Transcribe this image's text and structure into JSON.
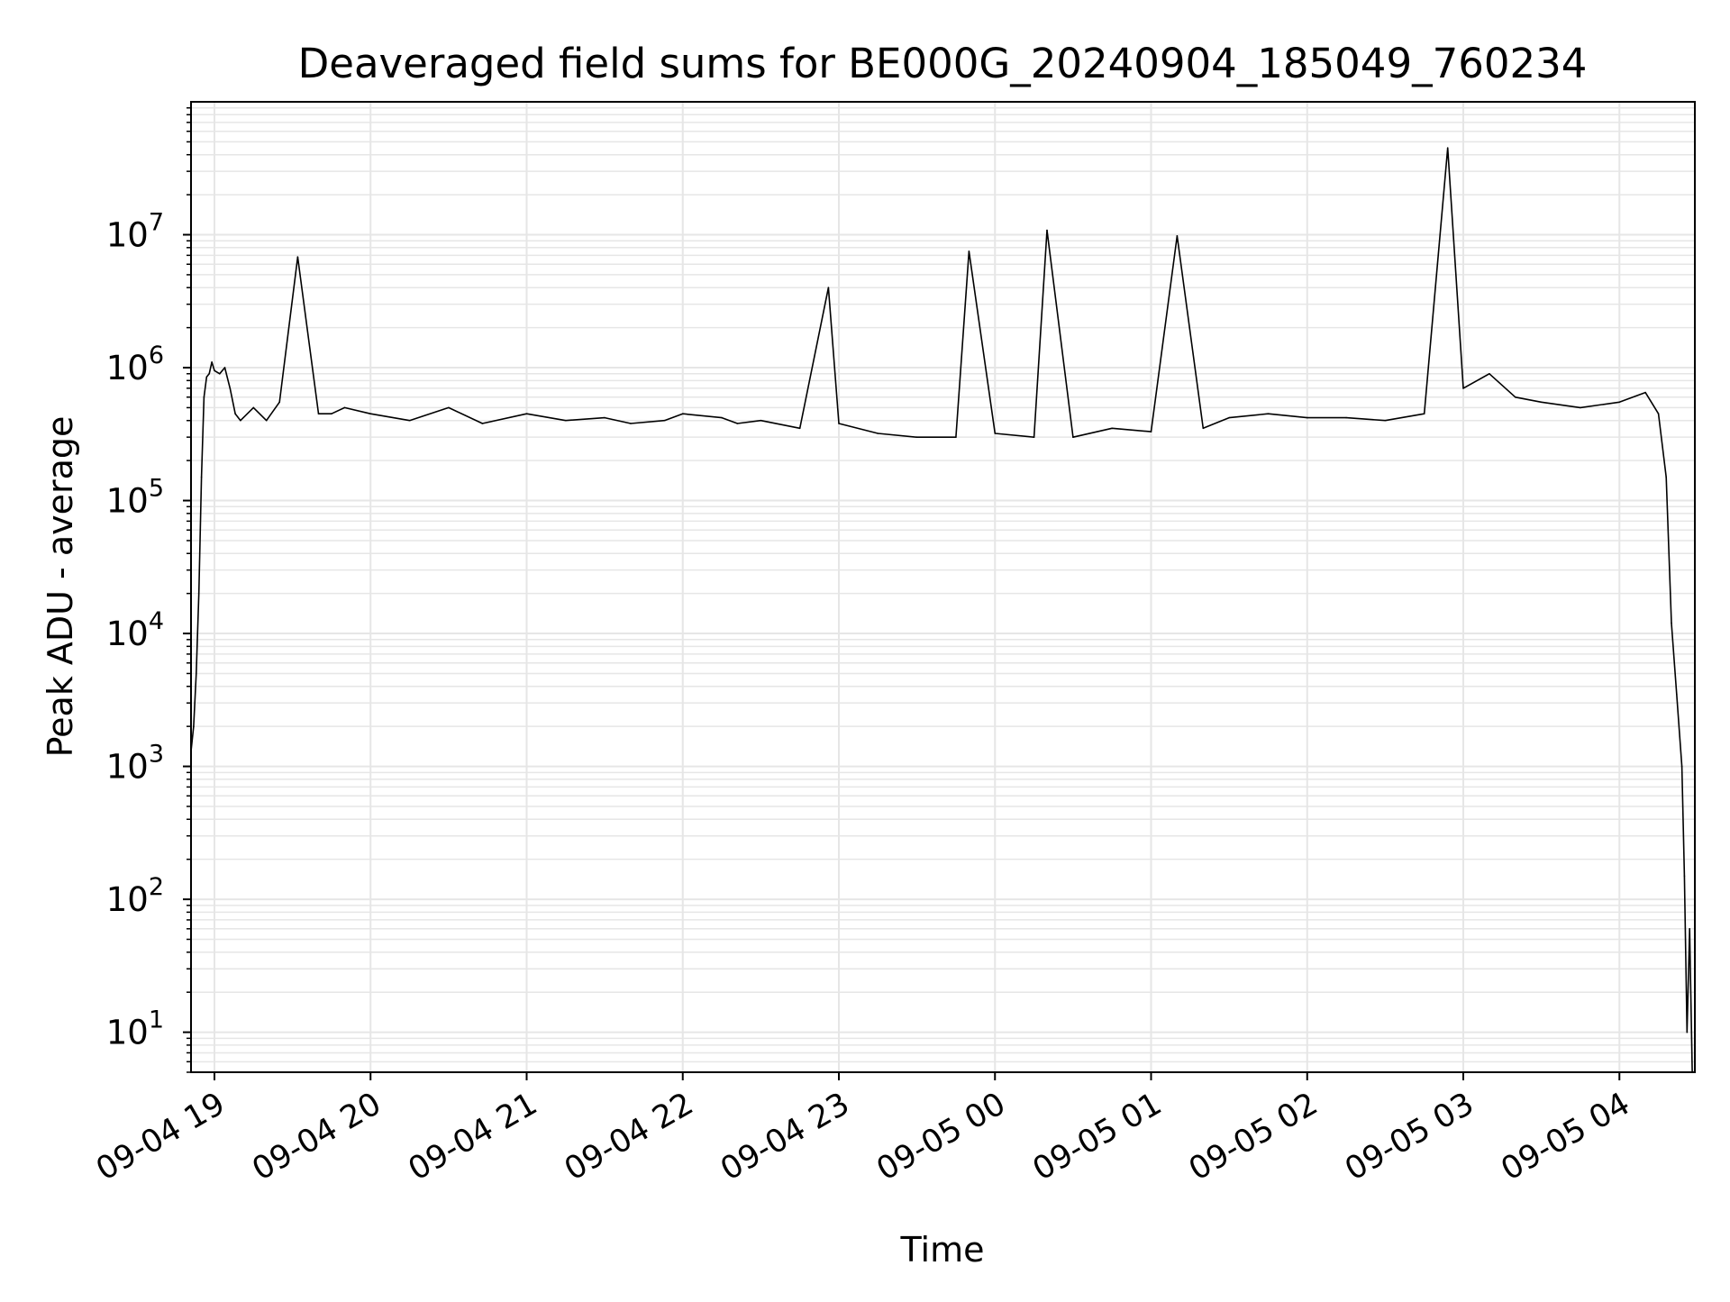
{
  "chart_data": {
    "type": "line",
    "title": "Deaveraged field sums for BE000G_20240904_185049_760234",
    "xlabel": "Time",
    "ylabel": "Peak ADU - average",
    "y_scale": "log",
    "ylim": [
      5,
      100000000
    ],
    "xlim": [
      "2024-09-04 18:51",
      "2024-09-05 04:29"
    ],
    "grid": true,
    "line_color": "#000000",
    "grid_color": "#e6e6e6",
    "x_ticks": [
      {
        "t": "2024-09-04 19:00",
        "label": "09-04 19"
      },
      {
        "t": "2024-09-04 20:00",
        "label": "09-04 20"
      },
      {
        "t": "2024-09-04 21:00",
        "label": "09-04 21"
      },
      {
        "t": "2024-09-04 22:00",
        "label": "09-04 22"
      },
      {
        "t": "2024-09-04 23:00",
        "label": "09-04 23"
      },
      {
        "t": "2024-09-05 00:00",
        "label": "09-05 00"
      },
      {
        "t": "2024-09-05 01:00",
        "label": "09-05 01"
      },
      {
        "t": "2024-09-05 02:00",
        "label": "09-05 02"
      },
      {
        "t": "2024-09-05 03:00",
        "label": "09-05 03"
      },
      {
        "t": "2024-09-05 04:00",
        "label": "09-05 04"
      }
    ],
    "y_ticks": [
      {
        "value": 10,
        "base": "10",
        "exp": "1"
      },
      {
        "value": 100,
        "base": "10",
        "exp": "2"
      },
      {
        "value": 1000,
        "base": "10",
        "exp": "3"
      },
      {
        "value": 10000,
        "base": "10",
        "exp": "4"
      },
      {
        "value": 100000,
        "base": "10",
        "exp": "5"
      },
      {
        "value": 1000000,
        "base": "10",
        "exp": "6"
      },
      {
        "value": 10000000,
        "base": "10",
        "exp": "7"
      }
    ],
    "series": [
      {
        "x": [
          "2024-09-04 18:51",
          "2024-09-04 18:52",
          "2024-09-04 18:53",
          "2024-09-04 18:54",
          "2024-09-04 18:55",
          "2024-09-04 18:56",
          "2024-09-04 18:57",
          "2024-09-04 18:58",
          "2024-09-04 18:59",
          "2024-09-04 19:00",
          "2024-09-04 19:02",
          "2024-09-04 19:04",
          "2024-09-04 19:06",
          "2024-09-04 19:08",
          "2024-09-04 19:10",
          "2024-09-04 19:15",
          "2024-09-04 19:20",
          "2024-09-04 19:25",
          "2024-09-04 19:32",
          "2024-09-04 19:40",
          "2024-09-04 19:45",
          "2024-09-04 19:50",
          "2024-09-04 20:00",
          "2024-09-04 20:15",
          "2024-09-04 20:30",
          "2024-09-04 20:43",
          "2024-09-04 21:00",
          "2024-09-04 21:15",
          "2024-09-04 21:30",
          "2024-09-04 21:40",
          "2024-09-04 21:53",
          "2024-09-04 22:00",
          "2024-09-04 22:15",
          "2024-09-04 22:21",
          "2024-09-04 22:30",
          "2024-09-04 22:45",
          "2024-09-04 22:56",
          "2024-09-04 23:00",
          "2024-09-04 23:15",
          "2024-09-04 23:30",
          "2024-09-04 23:45",
          "2024-09-04 23:50",
          "2024-09-05 00:00",
          "2024-09-05 00:15",
          "2024-09-05 00:20",
          "2024-09-05 00:30",
          "2024-09-05 00:45",
          "2024-09-05 01:00",
          "2024-09-05 01:10",
          "2024-09-05 01:20",
          "2024-09-05 01:30",
          "2024-09-05 01:45",
          "2024-09-05 02:00",
          "2024-09-05 02:15",
          "2024-09-05 02:30",
          "2024-09-05 02:45",
          "2024-09-05 02:54",
          "2024-09-05 03:00",
          "2024-09-05 03:10",
          "2024-09-05 03:20",
          "2024-09-05 03:30",
          "2024-09-05 03:45",
          "2024-09-05 04:00",
          "2024-09-05 04:10",
          "2024-09-05 04:15",
          "2024-09-05 04:18",
          "2024-09-05 04:20",
          "2024-09-05 04:22",
          "2024-09-05 04:24",
          "2024-09-05 04:25",
          "2024-09-05 04:26",
          "2024-09-05 04:27",
          "2024-09-05 04:28"
        ],
        "y": [
          1300,
          2000,
          5000,
          20000,
          150000,
          600000,
          850000,
          900000,
          1100000,
          950000,
          900000,
          1000000,
          700000,
          450000,
          400000,
          500000,
          400000,
          550000,
          6800000,
          450000,
          450000,
          500000,
          450000,
          400000,
          500000,
          380000,
          450000,
          400000,
          420000,
          380000,
          400000,
          450000,
          420000,
          380000,
          400000,
          350000,
          4000000,
          380000,
          320000,
          300000,
          300000,
          7500000,
          320000,
          300000,
          10800000,
          300000,
          350000,
          330000,
          9800000,
          350000,
          420000,
          450000,
          420000,
          420000,
          400000,
          450000,
          45000000,
          700000,
          900000,
          600000,
          550000,
          500000,
          550000,
          650000,
          450000,
          150000,
          12000,
          3500,
          1000,
          150,
          10,
          60,
          5
        ]
      }
    ]
  }
}
